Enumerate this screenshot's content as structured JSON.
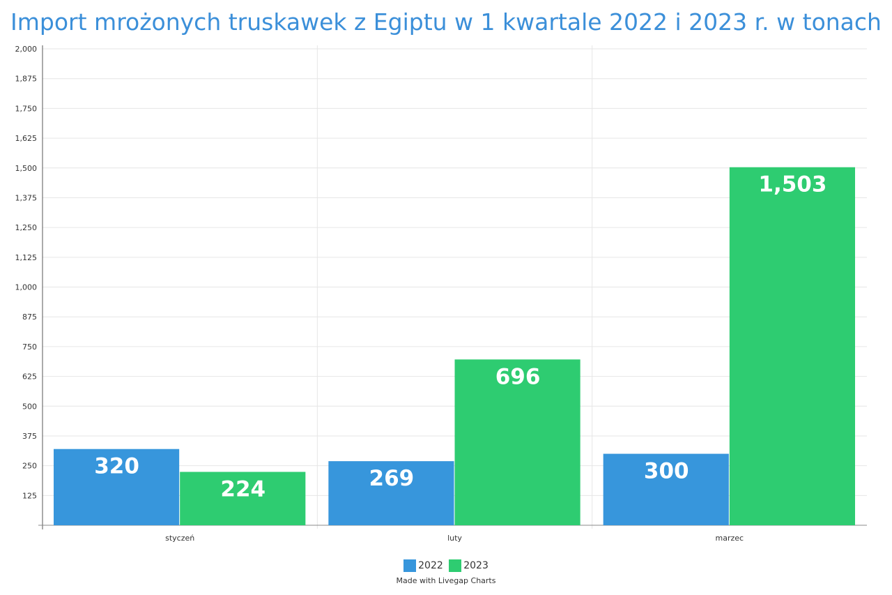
{
  "chart_data": {
    "type": "bar",
    "title": "Import mrożonych truskawek z Egiptu w 1 kwartale 2022 i 2023 r. w tonach",
    "categories": [
      "styczeń",
      "luty",
      "marzec"
    ],
    "series": [
      {
        "name": "2022",
        "values": [
          320,
          269,
          300
        ],
        "labels": [
          "320",
          "269",
          "300"
        ],
        "color": "#3796dc"
      },
      {
        "name": "2023",
        "values": [
          224,
          696,
          1503
        ],
        "labels": [
          "224",
          "696",
          "1,503"
        ],
        "color": "#2ecc71"
      }
    ],
    "yticks": [
      "125",
      "250",
      "375",
      "500",
      "625",
      "750",
      "875",
      "1,000",
      "1,125",
      "1,250",
      "1,375",
      "1,500",
      "1,625",
      "1,750",
      "1,875",
      "2,000"
    ],
    "ylim": [
      0,
      2000
    ],
    "xlabel": "",
    "ylabel": "",
    "grid": true,
    "legend_position": "bottom-center"
  },
  "legend": {
    "item_2022": "2022",
    "item_2023": "2023"
  },
  "credit": "Made with Livegap Charts"
}
